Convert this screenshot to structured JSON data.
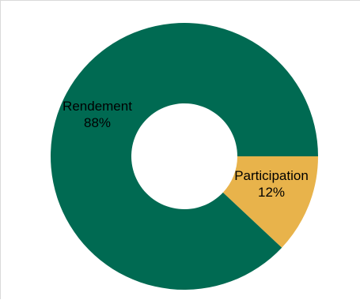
{
  "chart_data": {
    "type": "pie",
    "variant": "donut",
    "slices": [
      {
        "label": "Participation",
        "value": 12,
        "value_label": "12%",
        "color": "#e8b34b"
      },
      {
        "label": "Rendement",
        "value": 88,
        "value_label": "88%",
        "color": "#006a52"
      }
    ],
    "title": "",
    "legend": "none",
    "start_angle": "3 o'clock",
    "direction": "clockwise"
  }
}
